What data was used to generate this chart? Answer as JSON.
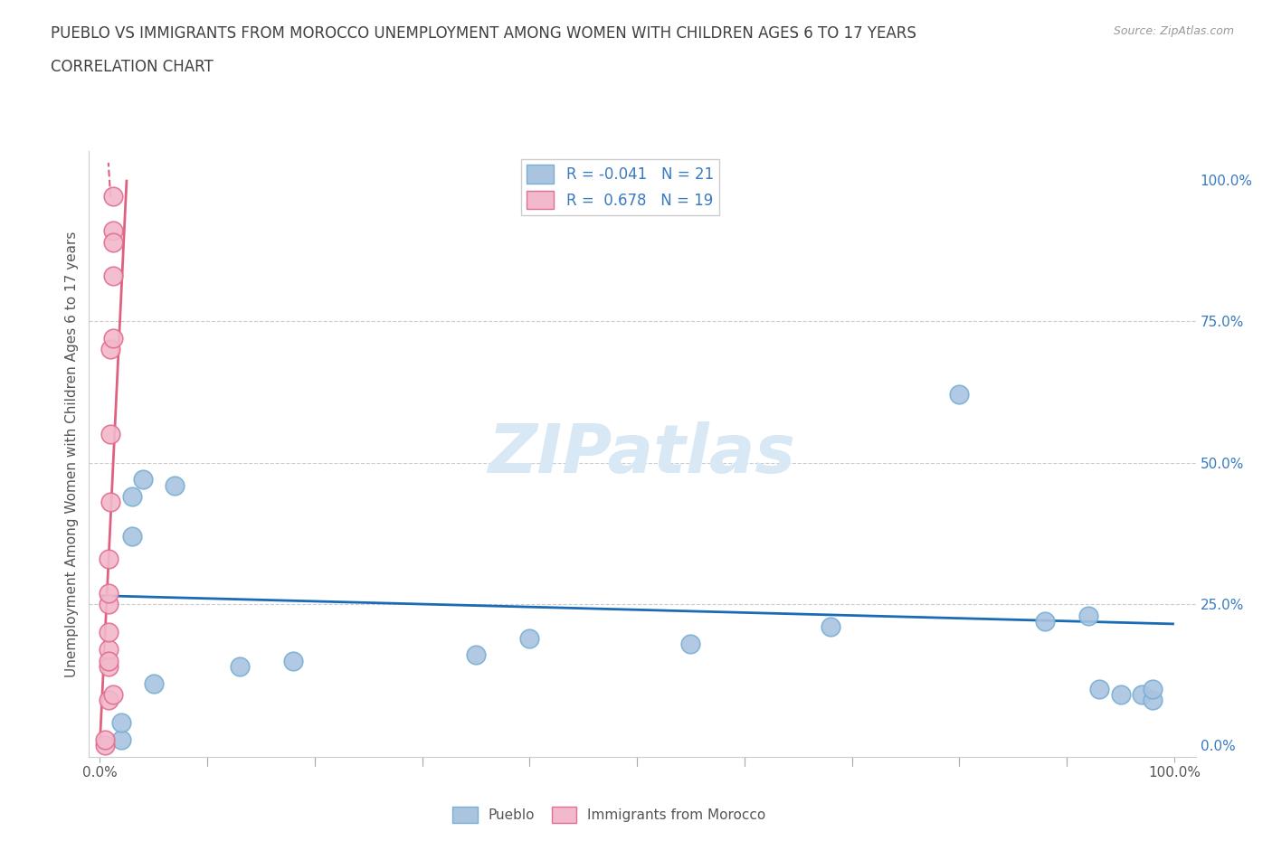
{
  "title_line1": "PUEBLO VS IMMIGRANTS FROM MOROCCO UNEMPLOYMENT AMONG WOMEN WITH CHILDREN AGES 6 TO 17 YEARS",
  "title_line2": "CORRELATION CHART",
  "source": "Source: ZipAtlas.com",
  "ylabel": "Unemployment Among Women with Children Ages 6 to 17 years",
  "xlim": [
    -0.01,
    1.02
  ],
  "ylim": [
    -0.02,
    1.05
  ],
  "ytick_vals": [
    0.0,
    0.25,
    0.5,
    0.75,
    1.0
  ],
  "xtick_vals": [
    0.0,
    0.1,
    0.2,
    0.3,
    0.4,
    0.5,
    0.6,
    0.7,
    0.8,
    0.9,
    1.0
  ],
  "pueblo_color": "#aac4e0",
  "morocco_color": "#f2b8cb",
  "pueblo_edge": "#7aafd4",
  "morocco_edge": "#e07090",
  "trend_blue": "#1a6bb5",
  "trend_pink": "#e06080",
  "legend_r_blue": "-0.041",
  "legend_n_blue": "21",
  "legend_r_pink": "0.678",
  "legend_n_pink": "19",
  "watermark": "ZIPatlas",
  "pueblo_x": [
    0.02,
    0.02,
    0.03,
    0.03,
    0.04,
    0.05,
    0.07,
    0.13,
    0.18,
    0.35,
    0.4,
    0.55,
    0.68,
    0.8,
    0.88,
    0.92,
    0.93,
    0.95,
    0.97,
    0.98,
    0.98
  ],
  "pueblo_y": [
    0.01,
    0.04,
    0.37,
    0.44,
    0.47,
    0.11,
    0.46,
    0.14,
    0.15,
    0.16,
    0.19,
    0.18,
    0.21,
    0.62,
    0.22,
    0.23,
    0.1,
    0.09,
    0.09,
    0.08,
    0.1
  ],
  "morocco_x": [
    0.005,
    0.005,
    0.008,
    0.008,
    0.008,
    0.008,
    0.008,
    0.008,
    0.008,
    0.008,
    0.01,
    0.01,
    0.01,
    0.012,
    0.012,
    0.012,
    0.012,
    0.012,
    0.012
  ],
  "morocco_y": [
    0.0,
    0.01,
    0.08,
    0.14,
    0.17,
    0.2,
    0.25,
    0.27,
    0.33,
    0.15,
    0.43,
    0.55,
    0.7,
    0.72,
    0.83,
    0.91,
    0.97,
    0.89,
    0.09
  ],
  "morocco_line_x": [
    0.0,
    0.025
  ],
  "morocco_line_y": [
    0.0,
    1.0
  ],
  "blue_trend_x": [
    0.0,
    1.0
  ],
  "blue_trend_y": [
    0.265,
    0.215
  ],
  "grid_color": "#cccccc",
  "background_color": "#ffffff",
  "title_color": "#404040",
  "axis_color": "#555555",
  "tick_label_color_right": "#3a7abf",
  "tick_label_color_bottom": "#555555",
  "watermark_color": "#d8e8f5"
}
